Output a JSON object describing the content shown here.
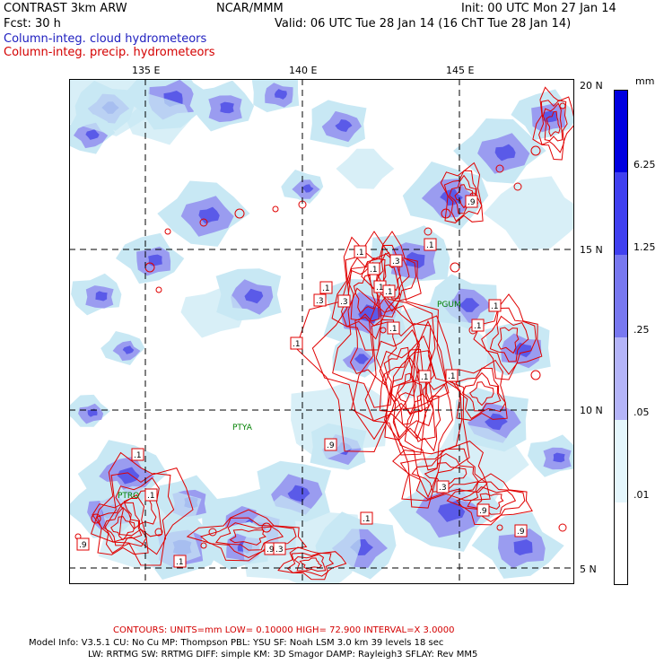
{
  "header": {
    "model": "CONTRAST  3km ARW",
    "org": "NCAR/MMM",
    "init": "Init: 00 UTC Mon 27 Jan 14",
    "fcst": "Fcst:   30 h",
    "valid": "Valid: 06 UTC Tue 28 Jan 14 (16 ChT Tue 28 Jan 14)",
    "field1": "Column-integ. cloud hydrometeors",
    "field2": "Column-integ. precip. hydrometeors"
  },
  "axes": {
    "lon_labels": [
      "135 E",
      "140 E",
      "145 E"
    ],
    "lat_labels": [
      "20 N",
      "15 N",
      "10 N",
      "5 N"
    ]
  },
  "stations": [
    "PGUM",
    "PTYA",
    "PTRO"
  ],
  "contour_labels": [
    ".1",
    ".1",
    ".3",
    ".1",
    ".1",
    ".3",
    ".9",
    ".1",
    ".1",
    ".3",
    ".1",
    ".1",
    ".9",
    ".1",
    ".1",
    ".9",
    ".1",
    ".9",
    ".1",
    ".3",
    ".1",
    ".1",
    ".9",
    ".9",
    ".1",
    ".1",
    ".3"
  ],
  "legend": {
    "unit": "mm",
    "levels": [
      "6.25",
      "1.25",
      ".25",
      ".05",
      ".01"
    ],
    "colors": [
      "#0000e0",
      "#4040f0",
      "#7878f0",
      "#b4b4f8",
      "#e4f6fc",
      "#ffffff"
    ]
  },
  "colors": {
    "cloud_light": "#c8e8f4",
    "cloud_mid": "#9a9cf0",
    "cloud_dark": "#5a5ae8",
    "contour": "#e00000",
    "label_text": "#2020c0",
    "title_red": "#d40000",
    "station": "#008000"
  },
  "footer": {
    "contours": "CONTOURS:  UNITS=mm  LOW= 0.10000       HIGH= 72.900       INTERVAL=X  3.0000",
    "model_info_1": "Model Info: V3.5.1     CU: No Cu      MP: Thompson     PBL: YSU       SF: Noah LSM      3.0 km   39 levels    18 sec",
    "model_info_2": "LW: RRTMG    SW: RRTMG   DIFF: simple KM: 3D Smagor DAMP: Rayleigh3   SFLAY: Rev MM5"
  }
}
